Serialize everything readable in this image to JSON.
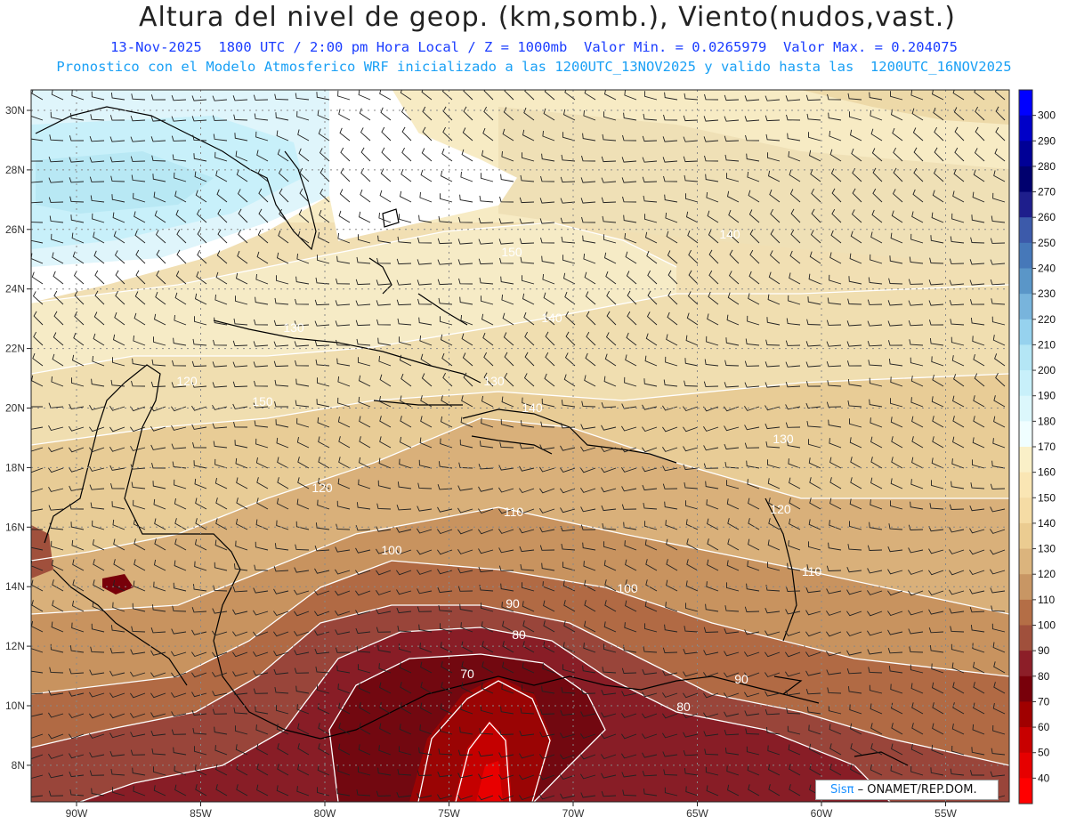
{
  "header": {
    "title": "Altura del nivel de geop. (km,somb.), Viento(nudos,vast.)",
    "line1": "13-Nov-2025  1800 UTC / 2:00 pm Hora Local / Z = 1000mb  Valor Min. = 0.0265979  Valor Max. = 0.204075",
    "line2": "Pronostico con el Modelo Atmosferico WRF inicializado a las 1200UTC_13NOV2025 y valido hasta las  1200UTC_16NOV2025"
  },
  "map": {
    "lon_ticks": [
      "90W",
      "85W",
      "80W",
      "75W",
      "70W",
      "65W",
      "60W",
      "55W"
    ],
    "lat_ticks": [
      "30N",
      "28N",
      "26N",
      "24N",
      "22N",
      "20N",
      "18N",
      "16N",
      "14N",
      "12N",
      "10N",
      "8N"
    ],
    "lon_values": [
      -90,
      -85,
      -80,
      -75,
      -70,
      -65,
      -60,
      -55
    ],
    "lat_values": [
      30,
      28,
      26,
      24,
      22,
      20,
      18,
      16,
      14,
      12,
      10,
      8
    ],
    "contour_labels": [
      "140",
      "150",
      "140",
      "130",
      "120",
      "130",
      "150",
      "140",
      "120",
      "110",
      "120",
      "130",
      "110",
      "100",
      "100",
      "90",
      "80",
      "70",
      "90",
      "80"
    ],
    "grid_lines": true
  },
  "colorbar": {
    "levels": [
      "300",
      "290",
      "280",
      "270",
      "260",
      "250",
      "240",
      "230",
      "220",
      "210",
      "200",
      "190",
      "180",
      "170",
      "160",
      "150",
      "140",
      "130",
      "120",
      "110",
      "100",
      "90",
      "80",
      "70",
      "60",
      "50",
      "40"
    ],
    "colors": [
      "#0000ff",
      "#0000c8",
      "#000096",
      "#00006e",
      "#1e1e8c",
      "#3c5aaa",
      "#4678b9",
      "#5a96c8",
      "#78b4dc",
      "#96d2ee",
      "#b4e6f5",
      "#c8f0fa",
      "#dcf7fc",
      "#f0feff",
      "#faf0c8",
      "#fae6b4",
      "#f5dca5",
      "#ebcc91",
      "#dbb47d",
      "#c89664",
      "#b46e46",
      "#a0503c",
      "#8c1e28",
      "#78000a",
      "#a00000",
      "#c80000",
      "#e60000",
      "#ff0000"
    ]
  },
  "credit": {
    "logo": "Sisπ",
    "text": "– ONAMET/REP.DOM."
  }
}
